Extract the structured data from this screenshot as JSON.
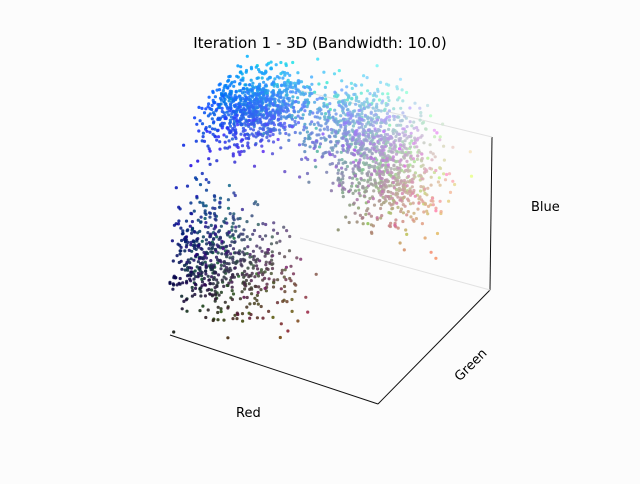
{
  "chart_data": {
    "type": "scatter",
    "projection": "3d",
    "title": "Iteration 1 - 3D (Bandwidth: 10.0)",
    "xlabel": "Red",
    "ylabel": "Green",
    "zlabel": "Blue",
    "xlim": [
      0,
      255
    ],
    "ylim": [
      0,
      255
    ],
    "zlim": [
      0,
      255
    ],
    "ticks_visible": false,
    "grid": false,
    "legend": "none",
    "marker_color": "point's own RGB value",
    "background": "#fcfcfc",
    "point_clusters": [
      {
        "description": "bright blue cap",
        "center": [
          40,
          120,
          235
        ],
        "count": 900
      },
      {
        "description": "light blue-grey ridge",
        "center": [
          140,
          170,
          215
        ],
        "count": 700
      },
      {
        "description": "grey-beige sheet",
        "center": [
          175,
          175,
          160
        ],
        "count": 600
      },
      {
        "description": "dark navy wall",
        "center": [
          20,
          40,
          90
        ],
        "count": 350
      },
      {
        "description": "dark grey streak",
        "center": [
          60,
          60,
          70
        ],
        "count": 300
      }
    ]
  }
}
